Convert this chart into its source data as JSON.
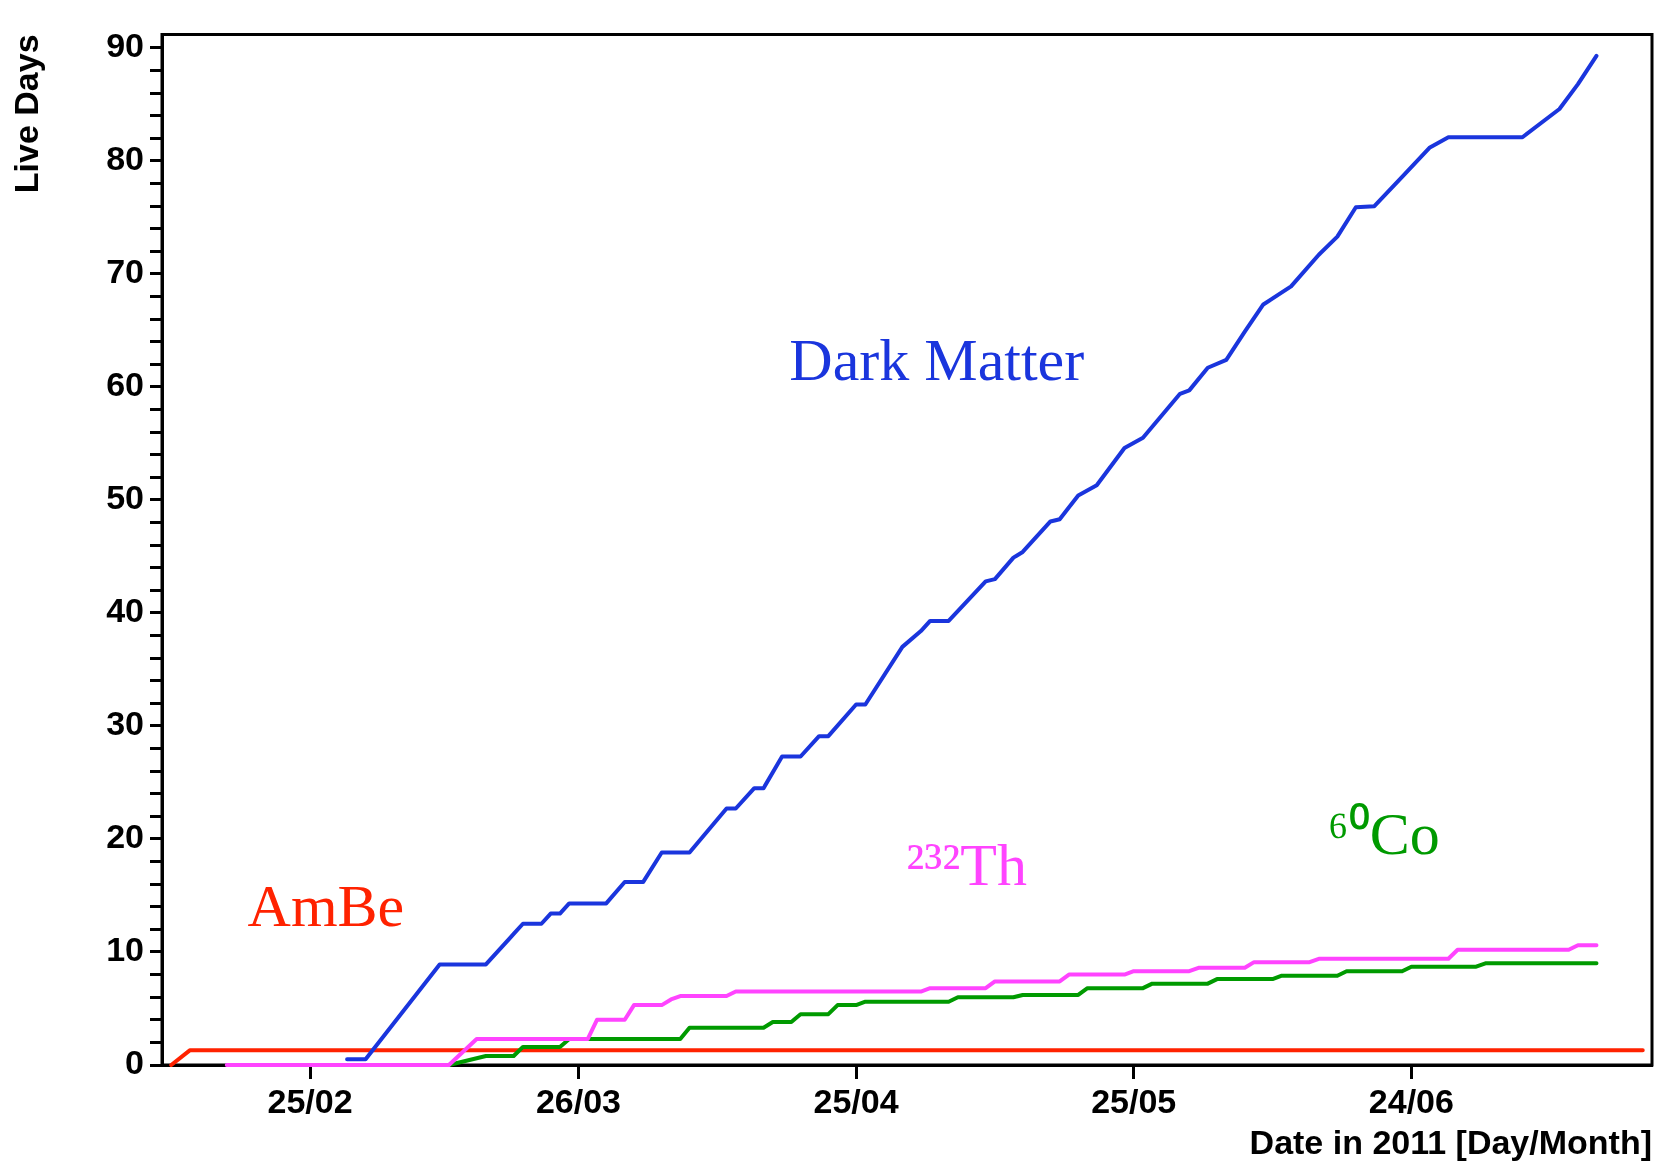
{
  "chart_data": {
    "type": "line",
    "xlabel": "Date in 2011 [Day/Month]",
    "ylabel": "Live Days",
    "xlim": [
      "2011-02-09",
      "2011-07-20"
    ],
    "ylim": [
      0,
      91.2
    ],
    "xticks": [
      {
        "value": "2011-02-25",
        "label": "25/02"
      },
      {
        "value": "2011-03-26",
        "label": "26/03"
      },
      {
        "value": "2011-04-25",
        "label": "25/04"
      },
      {
        "value": "2011-05-25",
        "label": "25/05"
      },
      {
        "value": "2011-06-24",
        "label": "24/06"
      }
    ],
    "yticks": [
      0,
      {
        "value": 2,
        "label": null
      },
      {
        "value": 4,
        "label": null
      },
      {
        "value": 6,
        "label": null
      },
      {
        "value": 8,
        "label": null
      },
      10,
      {
        "value": 12,
        "label": null
      },
      {
        "value": 14,
        "label": null
      },
      {
        "value": 16,
        "label": null
      },
      {
        "value": 18,
        "label": null
      },
      20,
      {
        "value": 22,
        "label": null
      },
      {
        "value": 24,
        "label": null
      },
      {
        "value": 26,
        "label": null
      },
      {
        "value": 28,
        "label": null
      },
      30,
      {
        "value": 32,
        "label": null
      },
      {
        "value": 34,
        "label": null
      },
      {
        "value": 36,
        "label": null
      },
      {
        "value": 38,
        "label": null
      },
      40,
      {
        "value": 42,
        "label": null
      },
      {
        "value": 44,
        "label": null
      },
      {
        "value": 46,
        "label": null
      },
      {
        "value": 48,
        "label": null
      },
      50,
      {
        "value": 52,
        "label": null
      },
      {
        "value": 54,
        "label": null
      },
      {
        "value": 56,
        "label": null
      },
      {
        "value": 58,
        "label": null
      },
      60,
      {
        "value": 62,
        "label": null
      },
      {
        "value": 64,
        "label": null
      },
      {
        "value": 66,
        "label": null
      },
      {
        "value": 68,
        "label": null
      },
      70,
      {
        "value": 72,
        "label": null
      },
      {
        "value": 74,
        "label": null
      },
      {
        "value": 76,
        "label": null
      },
      {
        "value": 78,
        "label": null
      },
      80,
      {
        "value": 82,
        "label": null
      },
      {
        "value": 84,
        "label": null
      },
      {
        "value": 86,
        "label": null
      },
      {
        "value": 88,
        "label": null
      },
      90
    ],
    "grid": false,
    "marker": "none",
    "series": [
      {
        "name": "Dark Matter",
        "color": "#1a35dd",
        "x": [
          "2011-03-01",
          "2011-03-03",
          "2011-03-11",
          "2011-03-16",
          "2011-03-19",
          "2011-03-20",
          "2011-03-22",
          "2011-03-23",
          "2011-03-24",
          "2011-03-25",
          "2011-03-29",
          "2011-03-31",
          "2011-04-02",
          "2011-04-04",
          "2011-04-07",
          "2011-04-11",
          "2011-04-12",
          "2011-04-14",
          "2011-04-15",
          "2011-04-17",
          "2011-04-19",
          "2011-04-21",
          "2011-04-22",
          "2011-04-25",
          "2011-04-26",
          "2011-04-30",
          "2011-05-02",
          "2011-05-03",
          "2011-05-05",
          "2011-05-09",
          "2011-05-10",
          "2011-05-12",
          "2011-05-13",
          "2011-05-16",
          "2011-05-17",
          "2011-05-19",
          "2011-05-21",
          "2011-05-24",
          "2011-05-26",
          "2011-05-30",
          "2011-05-31",
          "2011-06-02",
          "2011-06-04",
          "2011-06-06",
          "2011-06-08",
          "2011-06-11",
          "2011-06-14",
          "2011-06-16",
          "2011-06-18",
          "2011-06-20",
          "2011-06-23",
          "2011-06-26",
          "2011-06-28",
          "2011-07-06",
          "2011-07-10",
          "2011-07-12",
          "2011-07-14"
        ],
        "values": [
          0.5,
          0.5,
          8.9,
          8.9,
          11.6,
          12.5,
          12.5,
          13.4,
          13.4,
          14.3,
          14.3,
          16.2,
          16.2,
          18.8,
          18.8,
          22.7,
          22.7,
          24.5,
          24.5,
          27.3,
          27.3,
          29.1,
          29.1,
          31.9,
          31.9,
          37,
          38.4,
          39.3,
          39.3,
          42.8,
          43,
          44.9,
          45.4,
          48.1,
          48.3,
          50.4,
          51.3,
          54.6,
          55.5,
          59.4,
          59.7,
          61.7,
          62.4,
          64.9,
          67.3,
          68.9,
          71.7,
          73.3,
          75.9,
          76,
          78.6,
          81.2,
          82.1,
          82.1,
          84.6,
          86.8,
          89.3
        ]
      },
      {
        "name": "²³²Th",
        "color": "#ff44ff",
        "x": [
          "2011-02-16",
          "2011-03-12",
          "2011-03-15",
          "2011-03-27",
          "2011-03-28",
          "2011-03-31",
          "2011-04-01",
          "2011-04-04",
          "2011-04-05",
          "2011-04-06",
          "2011-04-11",
          "2011-04-12",
          "2011-05-02",
          "2011-05-03",
          "2011-05-09",
          "2011-05-10",
          "2011-05-17",
          "2011-05-18",
          "2011-05-24",
          "2011-05-25",
          "2011-05-31",
          "2011-06-01",
          "2011-06-06",
          "2011-06-07",
          "2011-06-13",
          "2011-06-14",
          "2011-06-28",
          "2011-06-29",
          "2011-07-11",
          "2011-07-12",
          "2011-07-14"
        ],
        "values": [
          0,
          0,
          2.3,
          2.3,
          4,
          4,
          5.3,
          5.3,
          5.8,
          6.1,
          6.1,
          6.5,
          6.5,
          6.8,
          6.8,
          7.4,
          7.4,
          8,
          8,
          8.3,
          8.3,
          8.6,
          8.6,
          9.1,
          9.1,
          9.4,
          9.4,
          10.2,
          10.2,
          10.6,
          10.6
        ]
      },
      {
        "name": "⁶⁰Co",
        "color": "#009a00",
        "x": [
          "2011-03-12",
          "2011-03-16",
          "2011-03-19",
          "2011-03-20",
          "2011-03-24",
          "2011-03-25",
          "2011-04-06",
          "2011-04-07",
          "2011-04-15",
          "2011-04-16",
          "2011-04-18",
          "2011-04-19",
          "2011-04-22",
          "2011-04-23",
          "2011-04-25",
          "2011-04-26",
          "2011-05-05",
          "2011-05-06",
          "2011-05-12",
          "2011-05-13",
          "2011-05-19",
          "2011-05-20",
          "2011-05-26",
          "2011-05-27",
          "2011-06-02",
          "2011-06-03",
          "2011-06-09",
          "2011-06-10",
          "2011-06-16",
          "2011-06-17",
          "2011-06-23",
          "2011-06-24",
          "2011-07-01",
          "2011-07-02",
          "2011-07-14"
        ],
        "values": [
          0,
          0.8,
          0.8,
          1.6,
          1.6,
          2.3,
          2.3,
          3.3,
          3.3,
          3.8,
          3.8,
          4.5,
          4.5,
          5.3,
          5.3,
          5.6,
          5.6,
          6,
          6,
          6.2,
          6.2,
          6.8,
          6.8,
          7.2,
          7.2,
          7.6,
          7.6,
          7.9,
          7.9,
          8.3,
          8.3,
          8.7,
          8.7,
          9,
          9
        ]
      },
      {
        "name": "AmBe",
        "color": "#ff2200",
        "x": [
          "2011-02-10",
          "2011-02-12",
          "2011-07-19"
        ],
        "values": [
          0,
          1.3,
          1.3
        ]
      }
    ]
  }
}
